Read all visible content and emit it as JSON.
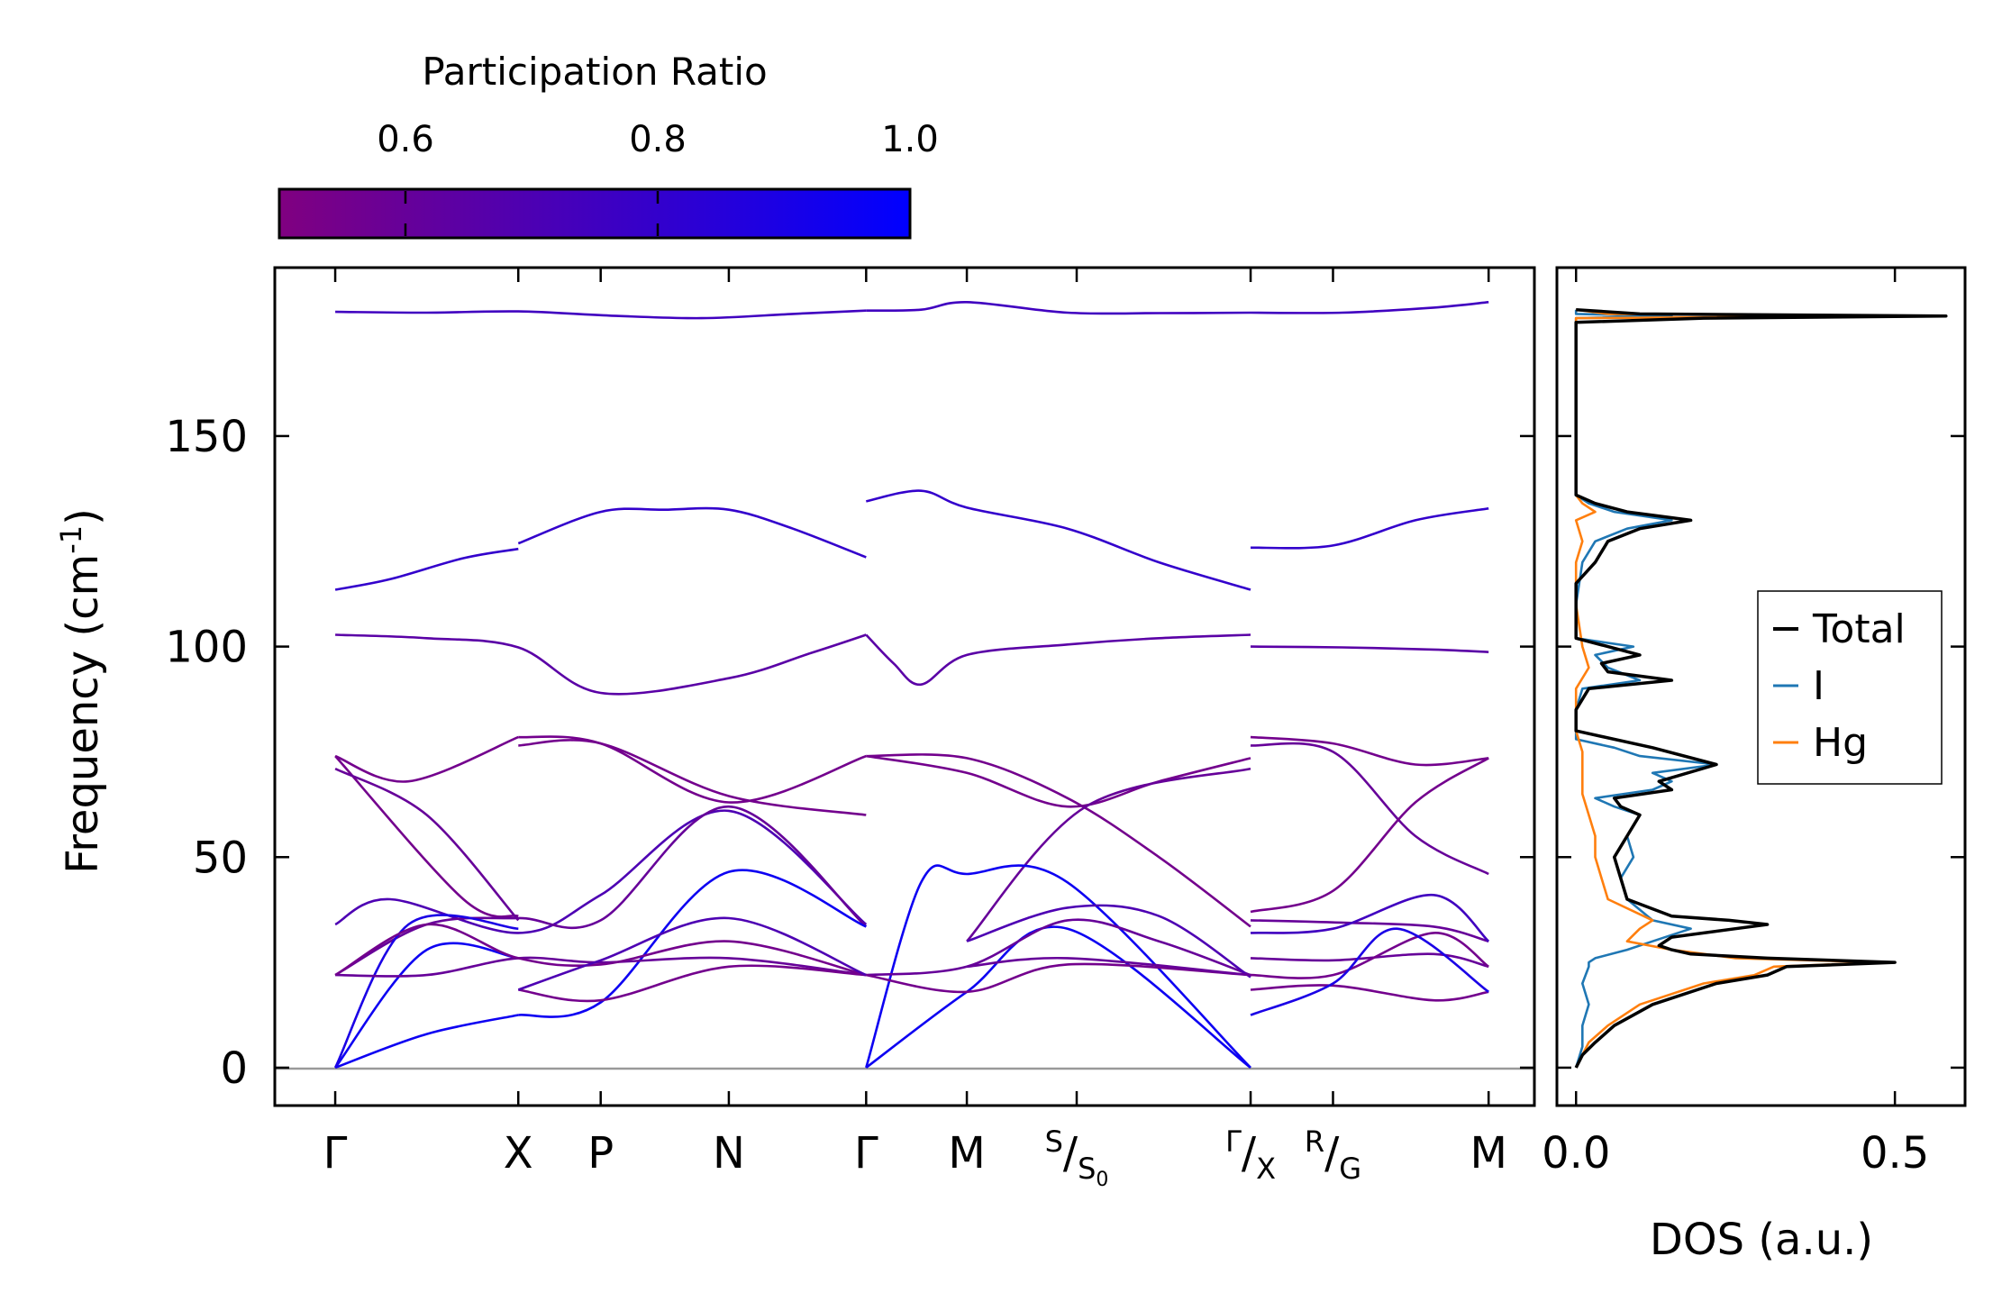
{
  "chart_data": [
    {
      "type": "line",
      "title": "",
      "ylabel": "Frequency (cm",
      "ylabel_sup": "-1",
      "ylabel_close": ")",
      "ylim": [
        -9,
        190
      ],
      "yticks": [
        0,
        50,
        100,
        150
      ],
      "xlabel": "",
      "xticks": [
        {
          "pos": 0.0,
          "label": "Γ"
        },
        {
          "pos": 1.0,
          "label": "X"
        },
        {
          "pos": 1.45,
          "label": "P"
        },
        {
          "pos": 2.15,
          "label": "N"
        },
        {
          "pos": 2.9,
          "label": "Γ"
        },
        {
          "pos": 3.45,
          "label": "M"
        },
        {
          "pos": 4.05,
          "label": "S",
          "sub_label": "S",
          "sub_sub": "0"
        },
        {
          "pos": 5.0,
          "label": "Γ",
          "sub_label": "X"
        },
        {
          "pos": 5.45,
          "label": "R",
          "sub_label": "G"
        },
        {
          "pos": 6.3,
          "label": "M"
        }
      ],
      "xlim": [
        -0.33,
        6.55
      ],
      "zero_line": 0,
      "colorbar": {
        "label": "Participation Ratio",
        "range": [
          0.5,
          1.0
        ],
        "ticks": [
          "0.6",
          "0.8",
          "1.0"
        ],
        "tick_values": [
          0.6,
          0.8,
          1.0
        ],
        "color_low": "#800080",
        "color_high": "#0000ff"
      },
      "segments": [
        {
          "pr": 0.75,
          "x": [
            0,
            0.5,
            1,
            1.5,
            2,
            2.5,
            2.9
          ],
          "y": [
            179.5,
            179.3,
            179.6,
            178.6,
            178.0,
            179.0,
            179.8
          ]
        },
        {
          "pr": 0.75,
          "x": [
            2.9,
            3.2,
            3.45,
            4.0,
            4.5,
            5.0
          ],
          "y": [
            179.8,
            180.0,
            181.8,
            179.3,
            179.2,
            179.3
          ]
        },
        {
          "pr": 0.75,
          "x": [
            5.0,
            5.5,
            6.0,
            6.3
          ],
          "y": [
            179.3,
            179.3,
            180.5,
            181.8
          ]
        },
        {
          "pr": 0.8,
          "x": [
            0,
            0.3,
            0.7,
            1.0
          ],
          "y": [
            113.5,
            116,
            121,
            123.2
          ]
        },
        {
          "pr": 0.8,
          "x": [
            1.0,
            1.45,
            1.8,
            2.15,
            2.5,
            2.9
          ],
          "y": [
            124.5,
            132.0,
            132.5,
            132.5,
            128,
            121.2
          ]
        },
        {
          "pr": 0.8,
          "x": [
            2.9,
            3.2,
            3.45,
            4.0,
            4.5,
            5.0
          ],
          "y": [
            134.5,
            137,
            133,
            128,
            120,
            113.5
          ]
        },
        {
          "pr": 0.8,
          "x": [
            5.0,
            5.45,
            5.9,
            6.3
          ],
          "y": [
            123.5,
            124,
            130,
            132.8
          ]
        },
        {
          "pr": 0.65,
          "x": [
            0,
            0.5,
            1.0,
            1.45,
            2.15,
            2.6,
            2.9
          ],
          "y": [
            102.8,
            102,
            99.8,
            89,
            92.5,
            98.5,
            102.8
          ]
        },
        {
          "pr": 0.65,
          "x": [
            2.9,
            3.05,
            3.2,
            3.45,
            4.0,
            4.5,
            5.0
          ],
          "y": [
            102.8,
            96,
            91,
            98,
            100.5,
            102,
            102.8
          ]
        },
        {
          "pr": 0.65,
          "x": [
            5.0,
            5.5,
            6.0,
            6.3
          ],
          "y": [
            100,
            99.8,
            99.3,
            98.7
          ]
        },
        {
          "pr": 0.55,
          "x": [
            0,
            0.4,
            1.0
          ],
          "y": [
            74,
            68,
            78.5
          ]
        },
        {
          "pr": 0.55,
          "x": [
            0,
            0.7,
            1.0
          ],
          "y": [
            74,
            40,
            36
          ]
        },
        {
          "pr": 0.6,
          "x": [
            0,
            0.5,
            1.0
          ],
          "y": [
            71,
            60,
            35
          ]
        },
        {
          "pr": 0.55,
          "x": [
            1.0,
            1.45,
            2.15,
            2.9
          ],
          "y": [
            76.5,
            77,
            64.5,
            60
          ]
        },
        {
          "pr": 0.55,
          "x": [
            1.0,
            1.45,
            2.15,
            2.9
          ],
          "y": [
            78.5,
            77,
            63,
            74
          ]
        },
        {
          "pr": 0.55,
          "x": [
            2.9,
            3.45,
            4.0,
            4.5,
            5.0
          ],
          "y": [
            74,
            73.5,
            64,
            50,
            33.5
          ]
        },
        {
          "pr": 0.55,
          "x": [
            2.9,
            3.45,
            4.0,
            4.5,
            5.0
          ],
          "y": [
            74,
            70,
            62,
            68,
            73.5
          ]
        },
        {
          "pr": 0.6,
          "x": [
            3.45,
            4.1,
            5.0
          ],
          "y": [
            30,
            62,
            71
          ]
        },
        {
          "pr": 0.55,
          "x": [
            5.0,
            5.45,
            5.9,
            6.3
          ],
          "y": [
            78.5,
            77,
            72,
            73.5
          ]
        },
        {
          "pr": 0.6,
          "x": [
            5.0,
            5.45,
            5.9,
            6.3
          ],
          "y": [
            76.5,
            75,
            55,
            46
          ]
        },
        {
          "pr": 0.55,
          "x": [
            5.0,
            5.45,
            5.9,
            6.3
          ],
          "y": [
            37,
            42,
            63,
            73.5
          ]
        },
        {
          "pr": 0.7,
          "x": [
            0,
            0.3,
            1.0,
            1.45,
            2.15,
            2.9
          ],
          "y": [
            34,
            40,
            32,
            41,
            61,
            34
          ]
        },
        {
          "pr": 0.6,
          "x": [
            0,
            0.5,
            1.0,
            1.45,
            2.15,
            2.9
          ],
          "y": [
            22,
            34,
            35.5,
            35,
            62,
            33.5
          ]
        },
        {
          "pr": 0.95,
          "x": [
            1.0,
            1.45,
            2.15,
            2.9
          ],
          "y": [
            12.5,
            15.5,
            46.5,
            33.5
          ]
        },
        {
          "pr": 0.95,
          "x": [
            0,
            0.5,
            1.0
          ],
          "y": [
            0,
            28,
            26
          ]
        },
        {
          "pr": 0.95,
          "x": [
            0,
            0.5,
            1.0
          ],
          "y": [
            0,
            8,
            12.5
          ]
        },
        {
          "pr": 0.9,
          "x": [
            0,
            0.4,
            1.0
          ],
          "y": [
            0,
            34,
            33
          ]
        },
        {
          "pr": 0.6,
          "x": [
            0,
            0.5,
            1.0,
            1.45,
            2.15,
            2.9
          ],
          "y": [
            22,
            22,
            26,
            25,
            26,
            22
          ]
        },
        {
          "pr": 0.55,
          "x": [
            0,
            0.5,
            1.0,
            1.45,
            2.15,
            2.9
          ],
          "y": [
            22,
            34,
            26,
            24.5,
            30,
            22
          ]
        },
        {
          "pr": 0.55,
          "x": [
            1.0,
            1.45,
            2.15,
            2.9
          ],
          "y": [
            18.5,
            16,
            24,
            22
          ]
        },
        {
          "pr": 0.7,
          "x": [
            1.0,
            1.45,
            2.15,
            2.9
          ],
          "y": [
            18.5,
            25.5,
            35.5,
            22
          ]
        },
        {
          "pr": 0.95,
          "x": [
            2.9,
            3.2,
            3.45,
            4.0,
            5.0
          ],
          "y": [
            0,
            44,
            46,
            44,
            0
          ]
        },
        {
          "pr": 0.95,
          "x": [
            2.9,
            3.45,
            4.0,
            5.0
          ],
          "y": [
            0,
            18,
            33,
            0
          ]
        },
        {
          "pr": 0.6,
          "x": [
            2.9,
            3.45,
            4.0,
            4.5,
            5.0
          ],
          "y": [
            22,
            24,
            35,
            30,
            22
          ]
        },
        {
          "pr": 0.55,
          "x": [
            2.9,
            3.45,
            4.0,
            5.0
          ],
          "y": [
            22,
            18,
            24.5,
            22
          ]
        },
        {
          "pr": 0.7,
          "x": [
            3.45,
            4.0,
            4.5,
            5.0
          ],
          "y": [
            30,
            38,
            36,
            21.5
          ]
        },
        {
          "pr": 0.6,
          "x": [
            3.45,
            4.0,
            5.0
          ],
          "y": [
            24,
            26,
            22
          ]
        },
        {
          "pr": 0.6,
          "x": [
            5.0,
            5.45,
            6.0,
            6.3
          ],
          "y": [
            35,
            34.5,
            33.5,
            30
          ]
        },
        {
          "pr": 0.75,
          "x": [
            5.0,
            5.45,
            6.0,
            6.3
          ],
          "y": [
            32,
            33,
            41,
            30
          ]
        },
        {
          "pr": 0.6,
          "x": [
            5.0,
            5.45,
            6.0,
            6.3
          ],
          "y": [
            26,
            25.5,
            27,
            24
          ]
        },
        {
          "pr": 0.55,
          "x": [
            5.0,
            5.45,
            6.0,
            6.3
          ],
          "y": [
            22,
            22,
            32,
            24
          ]
        },
        {
          "pr": 0.55,
          "x": [
            5.0,
            5.45,
            6.0,
            6.3
          ],
          "y": [
            18.5,
            19.5,
            16,
            18
          ]
        },
        {
          "pr": 0.9,
          "x": [
            5.0,
            5.45,
            5.8,
            6.3
          ],
          "y": [
            12.5,
            20,
            33,
            18
          ]
        }
      ]
    },
    {
      "type": "line",
      "title": "",
      "xlabel": "DOS (a.u.)",
      "xlim": [
        -0.03,
        0.61
      ],
      "xticks": [
        0.0,
        0.5
      ],
      "xtick_labels": [
        "0.0",
        "0.5"
      ],
      "ylim": [
        -9,
        190
      ],
      "legend": {
        "placement": "center-right"
      },
      "series": [
        {
          "name": "Total",
          "color": "#000000",
          "y": [
            0,
            3,
            6,
            10,
            15,
            20,
            22,
            24,
            25,
            26,
            27,
            28,
            29,
            31,
            33,
            34,
            35,
            36,
            40,
            45,
            50,
            55,
            60,
            62,
            64,
            66,
            68,
            72,
            76,
            80,
            85,
            90,
            92,
            94,
            96,
            98,
            100,
            102,
            105,
            110,
            115,
            120,
            125,
            128,
            130,
            132,
            134,
            136,
            137,
            138,
            140,
            150,
            160,
            170,
            175,
            176,
            177,
            178,
            178.5,
            179,
            180
          ],
          "v": [
            0.0,
            0.01,
            0.03,
            0.06,
            0.12,
            0.22,
            0.3,
            0.33,
            0.5,
            0.3,
            0.18,
            0.15,
            0.13,
            0.15,
            0.25,
            0.3,
            0.24,
            0.15,
            0.08,
            0.07,
            0.06,
            0.08,
            0.1,
            0.07,
            0.06,
            0.15,
            0.13,
            0.22,
            0.12,
            0.0,
            0.0,
            0.02,
            0.15,
            0.05,
            0.04,
            0.1,
            0.05,
            0.0,
            0.0,
            0.0,
            0.0,
            0.03,
            0.05,
            0.1,
            0.18,
            0.08,
            0.03,
            0.0,
            0.0,
            0.0,
            0.0,
            0.0,
            0.0,
            0.0,
            0.0,
            0.0,
            0.0,
            0.2,
            0.58,
            0.1,
            0.0
          ]
        },
        {
          "name": "I",
          "color": "#1f77b4",
          "y": [
            0,
            5,
            10,
            15,
            20,
            24,
            25,
            26,
            28,
            30,
            33,
            35,
            40,
            45,
            50,
            55,
            60,
            62,
            64,
            66,
            68,
            70,
            72,
            74,
            76,
            78,
            80,
            85,
            90,
            92,
            95,
            98,
            100,
            102,
            105,
            110,
            120,
            125,
            128,
            130,
            132,
            134,
            136,
            138,
            140,
            170,
            176,
            177,
            178,
            178.5,
            179,
            180
          ],
          "v": [
            0.0,
            0.01,
            0.01,
            0.02,
            0.01,
            0.02,
            0.02,
            0.03,
            0.08,
            0.12,
            0.18,
            0.12,
            0.08,
            0.07,
            0.09,
            0.08,
            0.1,
            0.06,
            0.03,
            0.12,
            0.15,
            0.12,
            0.22,
            0.1,
            0.06,
            0.0,
            0.0,
            0.0,
            0.01,
            0.1,
            0.05,
            0.03,
            0.09,
            0.0,
            0.0,
            0.0,
            0.01,
            0.03,
            0.08,
            0.15,
            0.06,
            0.02,
            0.0,
            0.0,
            0.0,
            0.0,
            0.0,
            0.0,
            0.0,
            0.15,
            0.0,
            0.0
          ]
        },
        {
          "name": "Hg",
          "color": "#ff7f0e",
          "y": [
            0,
            3,
            6,
            10,
            15,
            20,
            22,
            24,
            25,
            26,
            28,
            30,
            33,
            35,
            40,
            45,
            50,
            55,
            60,
            65,
            70,
            75,
            80,
            85,
            90,
            95,
            100,
            110,
            120,
            125,
            130,
            132,
            134,
            136,
            140,
            170,
            176,
            177,
            178,
            178.5,
            179,
            180
          ],
          "v": [
            0.0,
            0.01,
            0.02,
            0.05,
            0.1,
            0.2,
            0.28,
            0.31,
            0.48,
            0.25,
            0.15,
            0.08,
            0.1,
            0.12,
            0.05,
            0.04,
            0.03,
            0.03,
            0.02,
            0.01,
            0.01,
            0.01,
            0.0,
            0.0,
            0.0,
            0.02,
            0.01,
            0.0,
            0.0,
            0.01,
            0.0,
            0.03,
            0.01,
            0.0,
            0.0,
            0.0,
            0.0,
            0.0,
            0.0,
            0.48,
            0.05,
            0.0
          ]
        }
      ]
    }
  ]
}
